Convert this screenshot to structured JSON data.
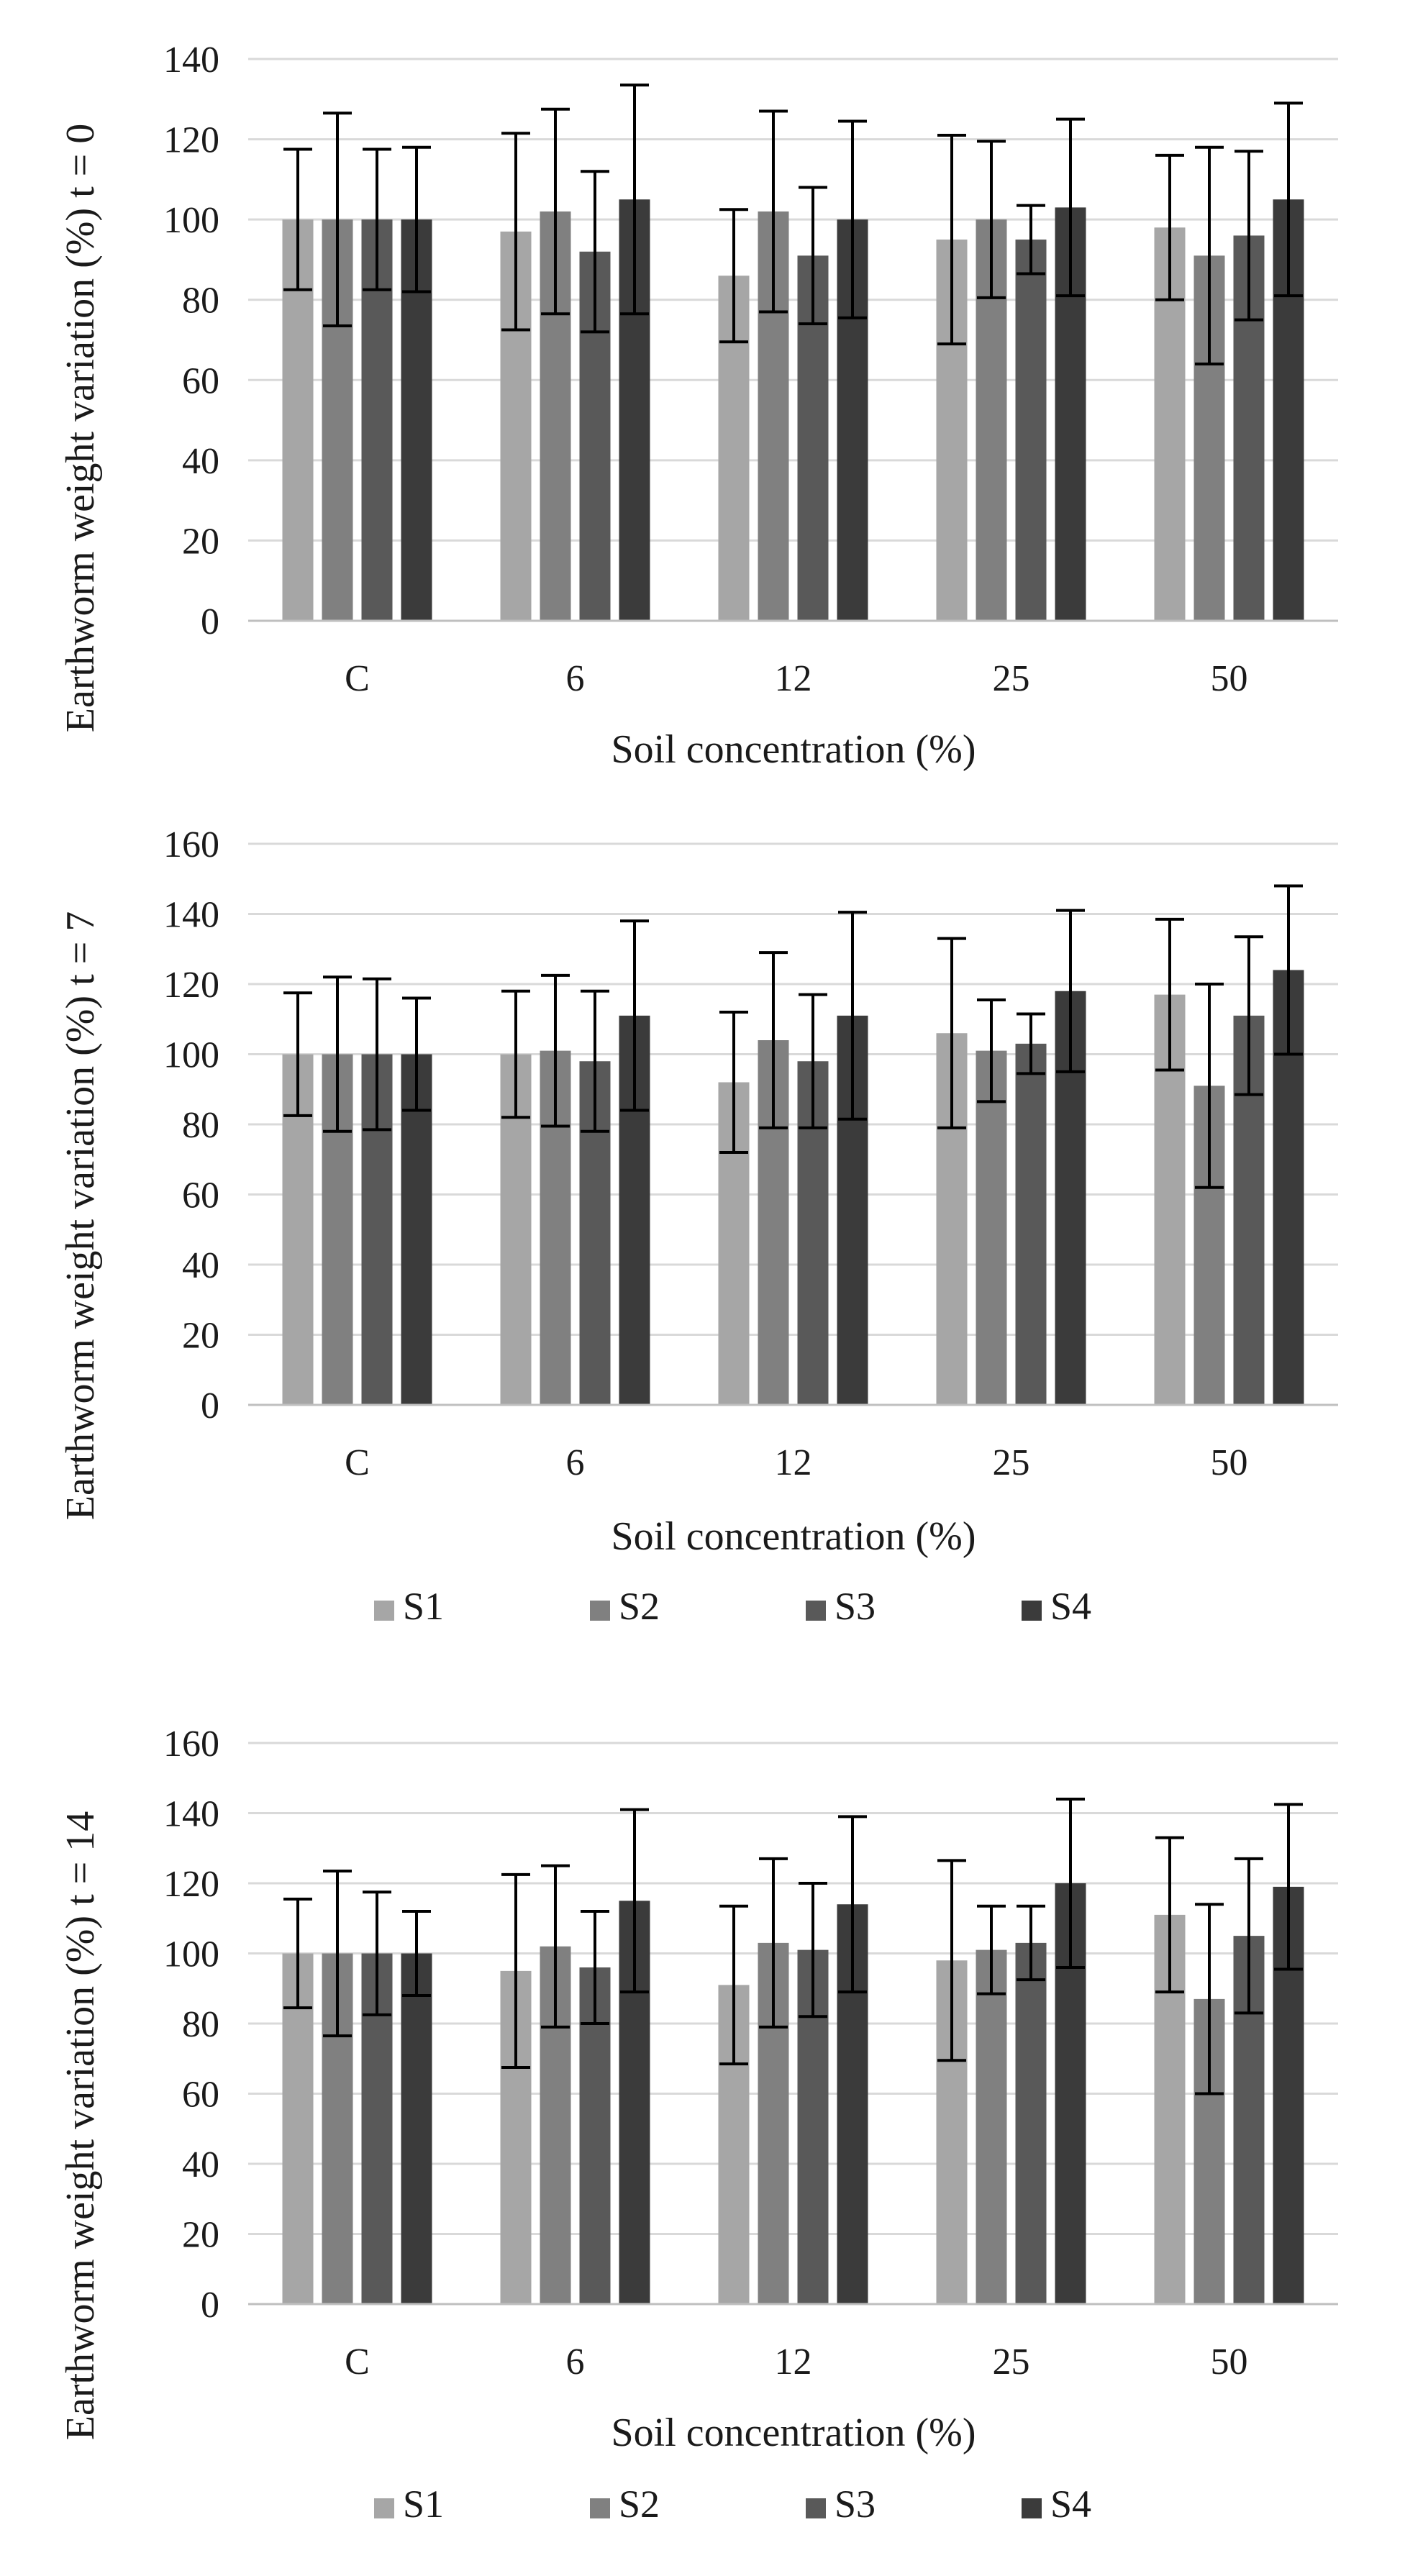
{
  "colors": {
    "S1": "#a6a6a6",
    "S2": "#808080",
    "S3": "#595959",
    "S4": "#3b3b3b",
    "grid": "#d9d9d9",
    "errorbar": "#000000"
  },
  "chart_data": [
    {
      "type": "bar",
      "title": "",
      "xlabel": "Soil concentration (%)",
      "ylabel": "Earthworm weight variation (%) t = 0",
      "categories": [
        "C",
        "6",
        "12",
        "25",
        "50"
      ],
      "ylim": [
        0,
        140
      ],
      "yticks": [
        0,
        20,
        40,
        60,
        80,
        100,
        120,
        140
      ],
      "grid": true,
      "legend": [],
      "series": [
        {
          "name": "S1",
          "values": [
            100,
            97,
            86,
            95,
            98
          ],
          "errors": [
            17.5,
            24.5,
            16.5,
            26,
            18
          ]
        },
        {
          "name": "S2",
          "values": [
            100,
            102,
            102,
            100,
            91
          ],
          "errors": [
            26.5,
            25.5,
            25,
            19.5,
            27
          ]
        },
        {
          "name": "S3",
          "values": [
            100,
            92,
            91,
            95,
            96
          ],
          "errors": [
            17.5,
            20,
            17,
            8.5,
            21
          ]
        },
        {
          "name": "S4",
          "values": [
            100,
            105,
            100,
            103,
            105
          ],
          "errors": [
            18,
            28.5,
            24.5,
            22,
            24
          ]
        }
      ]
    },
    {
      "type": "bar",
      "title": "",
      "xlabel": "Soil concentration (%)",
      "ylabel": "Earthworm weight variation (%) t = 7",
      "categories": [
        "C",
        "6",
        "12",
        "25",
        "50"
      ],
      "ylim": [
        0,
        160
      ],
      "yticks": [
        0,
        20,
        40,
        60,
        80,
        100,
        120,
        140,
        160
      ],
      "grid": true,
      "legend": [
        "S1",
        "S2",
        "S3",
        "S4"
      ],
      "series": [
        {
          "name": "S1",
          "values": [
            100,
            100,
            92,
            106,
            117
          ],
          "errors": [
            17.5,
            18,
            20,
            27,
            21.5
          ]
        },
        {
          "name": "S2",
          "values": [
            100,
            101,
            104,
            101,
            91
          ],
          "errors": [
            22,
            21.5,
            25,
            14.5,
            29
          ]
        },
        {
          "name": "S3",
          "values": [
            100,
            98,
            98,
            103,
            111
          ],
          "errors": [
            21.5,
            20,
            19,
            8.5,
            22.5
          ]
        },
        {
          "name": "S4",
          "values": [
            100,
            111,
            111,
            118,
            124
          ],
          "errors": [
            16,
            27,
            29.5,
            23,
            24
          ]
        }
      ]
    },
    {
      "type": "bar",
      "title": "",
      "xlabel": "Soil concentration (%)",
      "ylabel": "Earthworm weight variation (%) t = 14",
      "categories": [
        "C",
        "6",
        "12",
        "25",
        "50"
      ],
      "ylim": [
        0,
        160
      ],
      "yticks": [
        0,
        20,
        40,
        60,
        80,
        100,
        120,
        140,
        160
      ],
      "grid": true,
      "legend": [
        "S1",
        "S2",
        "S3",
        "S4"
      ],
      "series": [
        {
          "name": "S1",
          "values": [
            100,
            95,
            91,
            98,
            111
          ],
          "errors": [
            15.5,
            27.5,
            22.5,
            28.5,
            22
          ]
        },
        {
          "name": "S2",
          "values": [
            100,
            102,
            103,
            101,
            87
          ],
          "errors": [
            23.5,
            23,
            24,
            12.5,
            27
          ]
        },
        {
          "name": "S3",
          "values": [
            100,
            96,
            101,
            103,
            105
          ],
          "errors": [
            17.5,
            16,
            19,
            10.5,
            22
          ]
        },
        {
          "name": "S4",
          "values": [
            100,
            115,
            114,
            120,
            119
          ],
          "errors": [
            12,
            26,
            25,
            24,
            23.5
          ]
        }
      ]
    }
  ]
}
